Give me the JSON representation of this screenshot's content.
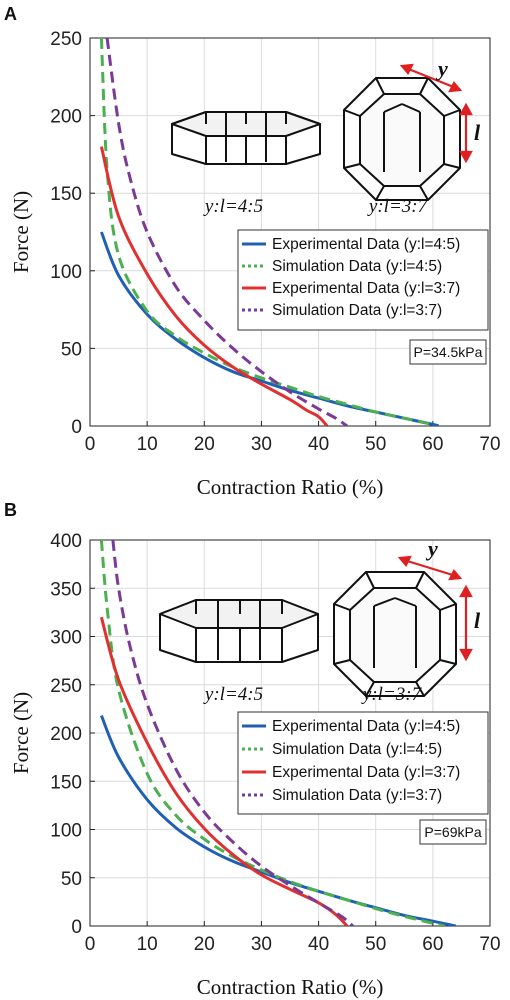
{
  "chart_data": [
    {
      "panel_label": "A",
      "type": "line",
      "xlabel": "Contraction Ratio (%)",
      "ylabel": "Force (N)",
      "xlim": [
        0,
        70
      ],
      "ylim": [
        0,
        250
      ],
      "xticks": [
        0,
        10,
        20,
        30,
        40,
        50,
        60,
        70
      ],
      "yticks": [
        0,
        50,
        100,
        150,
        200,
        250
      ],
      "grid": true,
      "legend_position": "right",
      "pressure_label": "P=34.5kPa",
      "ratio_labels": [
        "y:l=4:5",
        "y:l=3:7"
      ],
      "dimension_labels": [
        "y",
        "l"
      ],
      "series": [
        {
          "name": "Experimental Data (y:l=4:5)",
          "color": "#1f5fb4",
          "dash": "solid",
          "x": [
            2,
            5,
            10,
            15,
            20,
            25,
            30,
            35,
            40,
            45,
            50,
            55,
            60,
            61
          ],
          "y": [
            125,
            97,
            72,
            56,
            44,
            35,
            29,
            23,
            18,
            13,
            9,
            5,
            1,
            0
          ]
        },
        {
          "name": "Simulation Data (y:l=4:5)",
          "color": "#4caf50",
          "dash": "dash",
          "x": [
            2,
            3,
            5,
            10,
            15,
            20,
            25,
            30,
            35,
            40,
            45,
            50,
            55,
            60
          ],
          "y": [
            250,
            165,
            110,
            74,
            58,
            47,
            38,
            31,
            25,
            19,
            14,
            9,
            5,
            1
          ]
        },
        {
          "name": "Experimental Data (y:l=3:7)",
          "color": "#e03030",
          "dash": "solid",
          "x": [
            2,
            5,
            10,
            15,
            20,
            25,
            30,
            35,
            38,
            40,
            41.5
          ],
          "y": [
            180,
            135,
            98,
            71,
            52,
            38,
            27,
            17,
            10,
            6,
            0
          ]
        },
        {
          "name": "Simulation Data (y:l=3:7)",
          "color": "#7b3a96",
          "dash": "dash",
          "x": [
            3,
            5,
            7,
            10,
            15,
            20,
            25,
            30,
            35,
            40,
            43,
            45
          ],
          "y": [
            250,
            195,
            160,
            125,
            90,
            68,
            50,
            35,
            22,
            11,
            5,
            0
          ]
        }
      ]
    },
    {
      "panel_label": "B",
      "type": "line",
      "xlabel": "Contraction Ratio (%)",
      "ylabel": "Force (N)",
      "xlim": [
        0,
        70
      ],
      "ylim": [
        0,
        400
      ],
      "xticks": [
        0,
        10,
        20,
        30,
        40,
        50,
        60,
        70
      ],
      "yticks": [
        0,
        50,
        100,
        150,
        200,
        250,
        300,
        350,
        400
      ],
      "grid": true,
      "legend_position": "right",
      "pressure_label": "P=69kPa",
      "ratio_labels": [
        "y:l=4:5",
        "y:l=3:7"
      ],
      "dimension_labels": [
        "y",
        "l"
      ],
      "series": [
        {
          "name": "Experimental Data (y:l=4:5)",
          "color": "#1f5fb4",
          "dash": "solid",
          "x": [
            2,
            5,
            10,
            15,
            20,
            25,
            30,
            35,
            40,
            45,
            50,
            55,
            60,
            64
          ],
          "y": [
            218,
            175,
            131,
            102,
            82,
            67,
            56,
            45,
            36,
            27,
            19,
            11,
            5,
            0
          ]
        },
        {
          "name": "Simulation Data (y:l=4:5)",
          "color": "#4caf50",
          "dash": "dash",
          "x": [
            2,
            3,
            5,
            10,
            15,
            20,
            25,
            30,
            35,
            40,
            45,
            50,
            55,
            62
          ],
          "y": [
            400,
            330,
            245,
            158,
            115,
            90,
            72,
            58,
            46,
            36,
            27,
            18,
            10,
            0
          ]
        },
        {
          "name": "Experimental Data (y:l=3:7)",
          "color": "#e03030",
          "dash": "solid",
          "x": [
            2,
            5,
            10,
            15,
            20,
            25,
            30,
            35,
            40,
            43,
            45
          ],
          "y": [
            320,
            255,
            190,
            138,
            101,
            74,
            53,
            38,
            24,
            12,
            0
          ]
        },
        {
          "name": "Simulation Data (y:l=3:7)",
          "color": "#7b3a96",
          "dash": "dash",
          "x": [
            4,
            5,
            7,
            10,
            15,
            20,
            25,
            30,
            35,
            40,
            44,
            46
          ],
          "y": [
            400,
            350,
            290,
            230,
            163,
            118,
            87,
            62,
            42,
            24,
            10,
            0
          ]
        }
      ]
    }
  ]
}
